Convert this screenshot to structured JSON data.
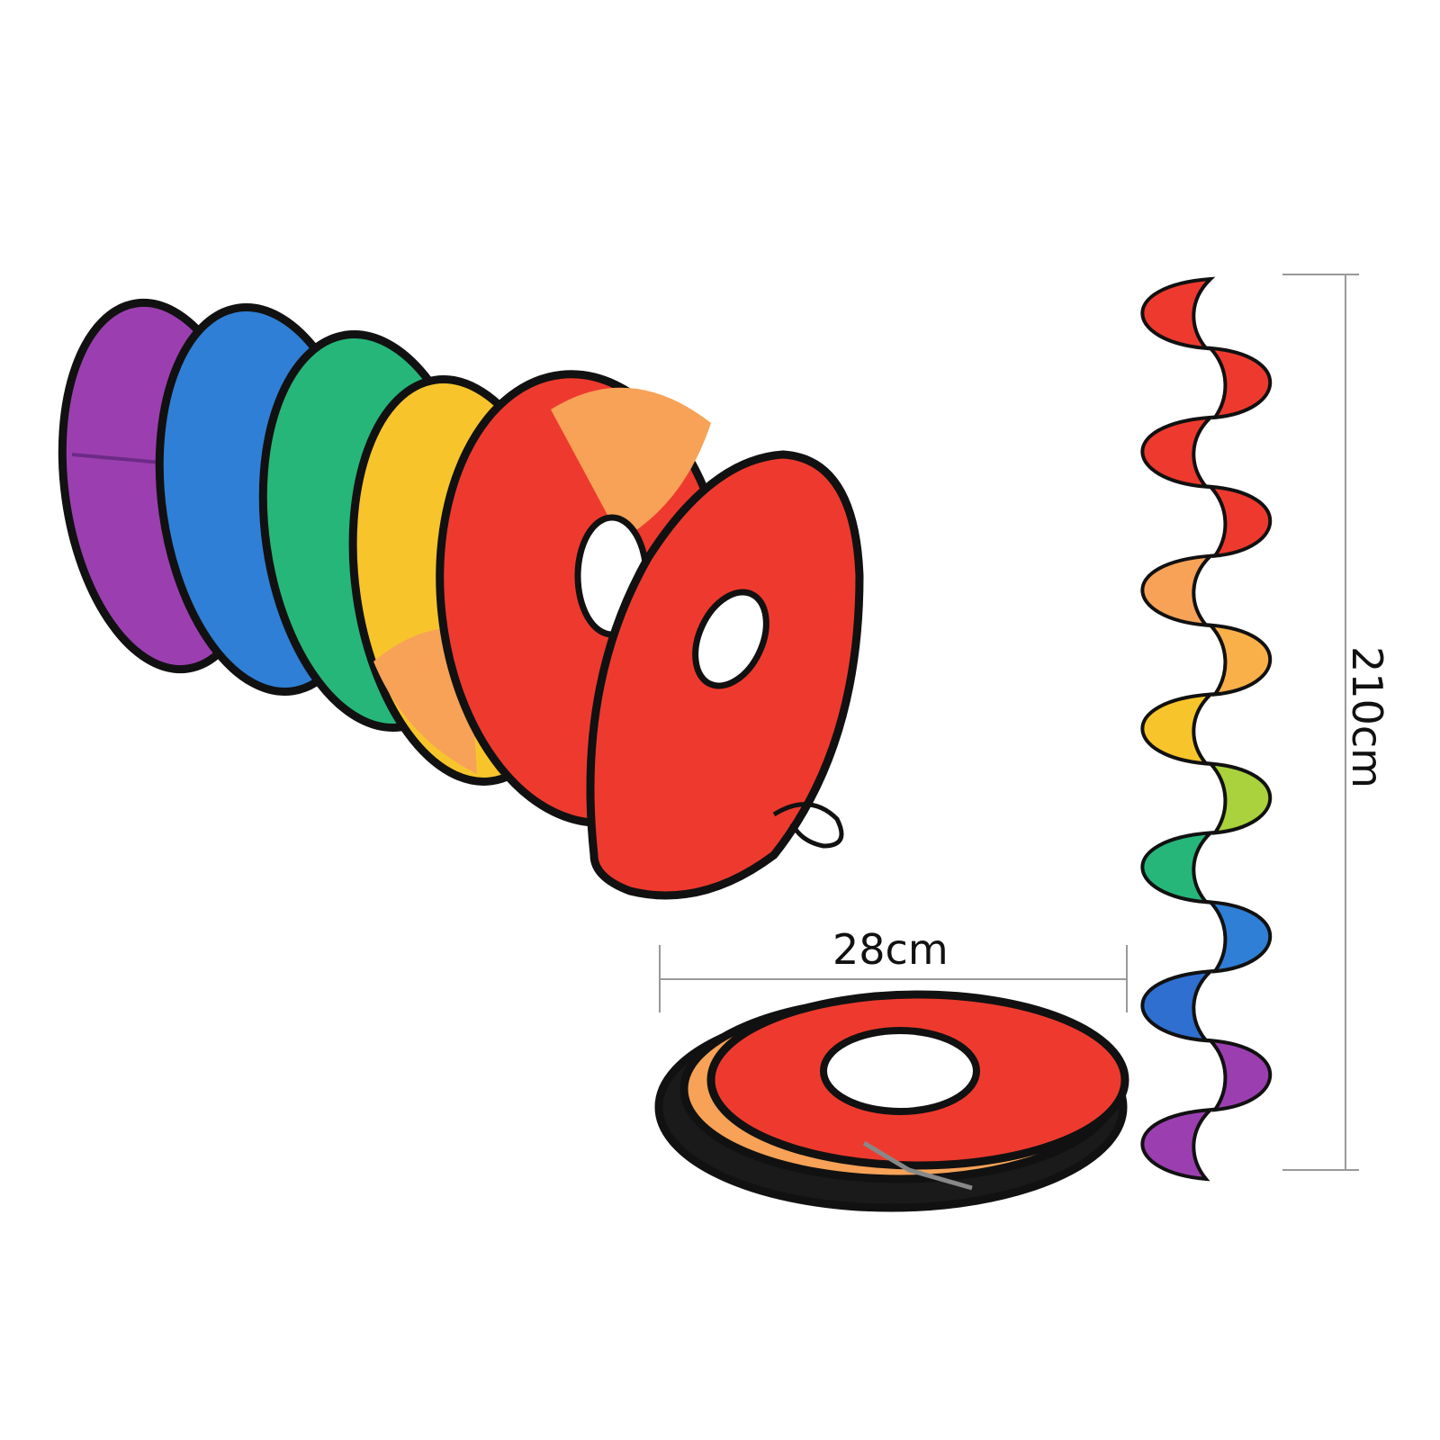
{
  "product": {
    "dimensions": {
      "width_label": "28cm",
      "length_label": "210cm"
    },
    "colors": {
      "purple": "#9b3fb0",
      "blue": "#2f7fd6",
      "green": "#27b67a",
      "yellow": "#f7c52b",
      "orange": "#f7a257",
      "red": "#ee3a2e",
      "trim": "#111111"
    },
    "spiral_lobe_colors": [
      "#ee3a2e",
      "#ee3a2e",
      "#ee3a2e",
      "#ee3a2e",
      "#f7a257",
      "#f9b048",
      "#f7c52b",
      "#a9d23c",
      "#27b67a",
      "#2f7fd6",
      "#2f6fd0",
      "#9b3fb0",
      "#9b3fb0"
    ]
  }
}
